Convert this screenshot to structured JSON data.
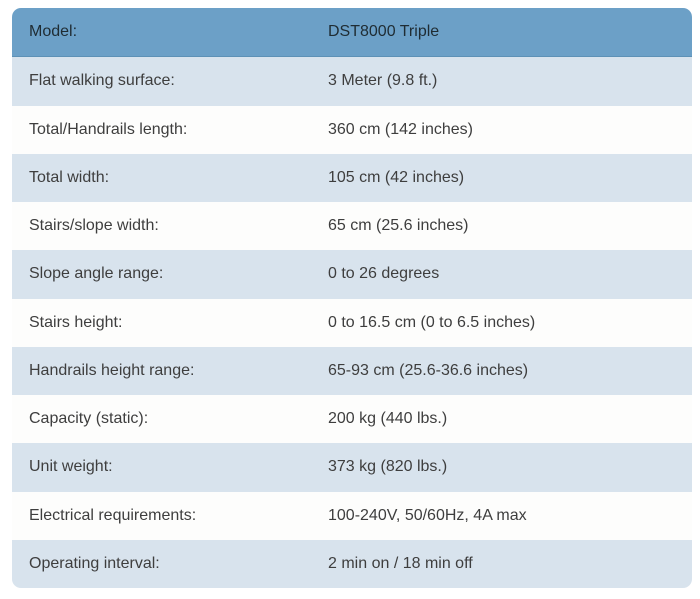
{
  "spec_table": {
    "header": {
      "label": "Model:",
      "value": "DST8000 Triple"
    },
    "rows": [
      {
        "label": "Flat walking surface:",
        "value": "3 Meter (9.8 ft.)"
      },
      {
        "label": "Total/Handrails length:",
        "value": "360 cm (142 inches)"
      },
      {
        "label": "Total width:",
        "value": "105 cm (42 inches)"
      },
      {
        "label": "Stairs/slope width:",
        "value": "65 cm (25.6 inches)"
      },
      {
        "label": "Slope angle range:",
        "value": "0 to 26 degrees"
      },
      {
        "label": "Stairs height:",
        "value": "0 to 16.5 cm (0 to 6.5 inches)"
      },
      {
        "label": "Handrails height range:",
        "value": "65-93 cm (25.6-36.6 inches)"
      },
      {
        "label": "Capacity (static):",
        "value": "200 kg (440 lbs.)"
      },
      {
        "label": "Unit weight:",
        "value": "373 kg (820 lbs.)"
      },
      {
        "label": "Electrical requirements:",
        "value": "100-240V, 50/60Hz, 4A max"
      },
      {
        "label": "Operating interval:",
        "value": "2 min on / 18 min off"
      }
    ],
    "colors": {
      "header_bg": "#6CA0C7",
      "header_text": "#1F2C33",
      "row_bg": "#FDFDFC",
      "row_alt_bg": "#D8E3ED",
      "body_text": "#3E3E3E"
    }
  }
}
